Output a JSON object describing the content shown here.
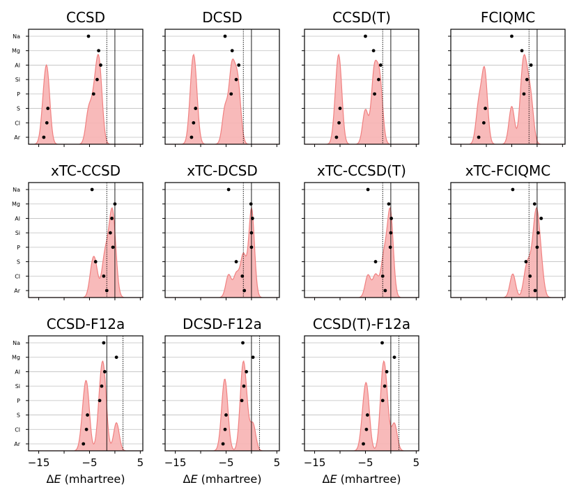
{
  "chart_data": {
    "type": "scatter",
    "description_axis": "x",
    "xlim": [
      -17,
      5.5
    ],
    "xticks": [
      -15,
      -10,
      -5,
      0,
      5
    ],
    "xtick_labels": [
      "−15",
      "",
      "−5",
      "",
      "5"
    ],
    "xlabel_prefix": "Δ",
    "xlabel_var": "E",
    "xlabel_suffix": " (mhartree)",
    "categories": [
      "Na",
      "Mg",
      "Al",
      "Si",
      "P",
      "S",
      "Cl",
      "Ar"
    ],
    "colors": {
      "density_fill": "#f7b3b3",
      "density_line": "#f08080",
      "point": "#000000",
      "grid": "#bfbfbf"
    },
    "panels": [
      {
        "title": "CCSD",
        "x": [
          -5.2,
          -3.2,
          -2.8,
          -3.5,
          -4.2,
          -13.2,
          -13.4,
          -14.0
        ],
        "solid_line": 0.0,
        "dotted_line": -1.6
      },
      {
        "title": "DCSD",
        "x": [
          -5.2,
          -3.8,
          -2.5,
          -3.0,
          -4.0,
          -11.0,
          -11.4,
          -11.8
        ],
        "solid_line": 0.0,
        "dotted_line": -1.6
      },
      {
        "title": "CCSD(T)",
        "x": [
          -5.0,
          -3.4,
          -2.0,
          -2.4,
          -3.2,
          -10.0,
          -10.2,
          -10.7
        ],
        "solid_line": 0.0,
        "dotted_line": -1.6
      },
      {
        "title": "FCIQMC",
        "x": [
          -5.0,
          -3.0,
          -1.2,
          -2.0,
          -2.6,
          -10.2,
          -10.5,
          -11.5
        ],
        "solid_line": 0.0,
        "dotted_line": -1.6
      },
      {
        "title": "xTC-CCSD",
        "x": [
          -4.5,
          0.0,
          -0.6,
          -0.9,
          -0.4,
          -3.8,
          -2.2,
          -1.6
        ],
        "solid_line": 0.0,
        "dotted_line": -1.6
      },
      {
        "title": "xTC-DCSD",
        "x": [
          -4.5,
          -0.1,
          0.2,
          0.0,
          0.0,
          -3.0,
          -1.8,
          -1.4
        ],
        "solid_line": 0.0,
        "dotted_line": -1.6
      },
      {
        "title": "xTC-CCSD(T)",
        "x": [
          -4.5,
          -0.4,
          0.1,
          0.0,
          -0.1,
          -3.0,
          -1.6,
          -1.1
        ],
        "solid_line": 0.0,
        "dotted_line": -1.6
      },
      {
        "title": "xTC-FCIQMC",
        "x": [
          -4.8,
          -0.5,
          0.8,
          0.2,
          0.0,
          -2.2,
          -1.4,
          -0.4
        ],
        "solid_line": 0.0,
        "dotted_line": -1.6
      },
      {
        "title": "CCSD-F12a",
        "x": [
          -2.2,
          0.3,
          -2.0,
          -2.6,
          -3.0,
          -5.4,
          -5.6,
          -6.2
        ],
        "solid_line": -1.6,
        "dotted_line": 1.6
      },
      {
        "title": "DCSD-F12a",
        "x": [
          -1.7,
          0.3,
          -1.0,
          -1.5,
          -1.9,
          -5.0,
          -5.2,
          -5.6
        ],
        "solid_line": 0.0,
        "dotted_line": 1.6
      },
      {
        "title": "CCSD(T)-F12a",
        "x": [
          -1.7,
          0.7,
          -0.8,
          -1.2,
          -1.6,
          -4.6,
          -4.8,
          -5.4
        ],
        "solid_line": 0.0,
        "dotted_line": 1.6
      }
    ]
  }
}
